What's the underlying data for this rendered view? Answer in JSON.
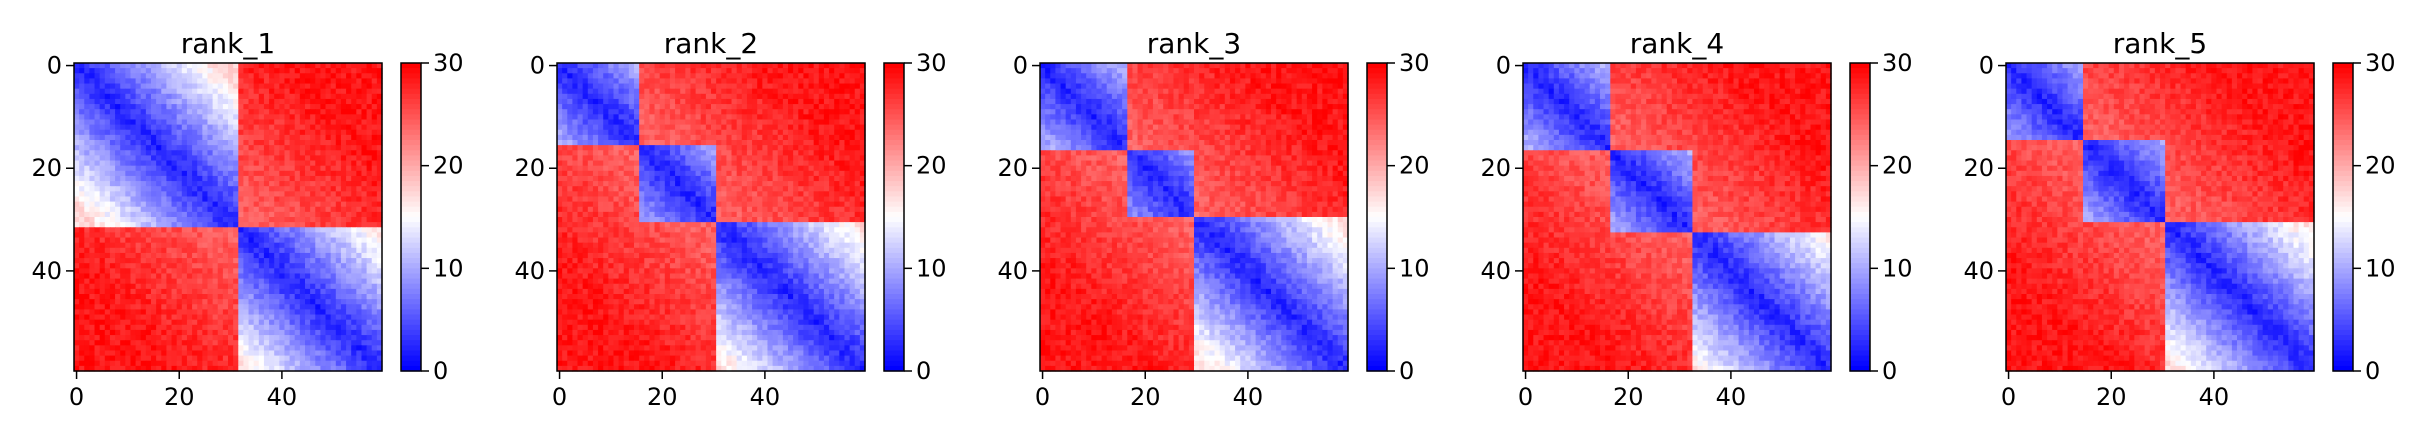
{
  "chart_data": {
    "type": "heatmap",
    "colormap": "bwr",
    "grid": false,
    "panels": [
      {
        "title": "rank_1",
        "x_ticks": [
          "0",
          "20",
          "40"
        ],
        "y_ticks": [
          "0",
          "20",
          "40"
        ],
        "colorbar_ticks": [
          "0",
          "10",
          "20",
          "30"
        ],
        "size": 60,
        "vmin": 0,
        "vmax": 30,
        "domains": [
          [
            0,
            32
          ],
          [
            32,
            60
          ]
        ],
        "sub_domains": [
          [
            16,
            32
          ]
        ]
      },
      {
        "title": "rank_2",
        "x_ticks": [
          "0",
          "20",
          "40"
        ],
        "y_ticks": [
          "0",
          "20",
          "40"
        ],
        "colorbar_ticks": [
          "0",
          "10",
          "20",
          "30"
        ],
        "size": 60,
        "vmin": 0,
        "vmax": 30,
        "domains": [
          [
            0,
            16
          ],
          [
            16,
            31
          ],
          [
            31,
            60
          ]
        ],
        "sub_domains": [
          [
            31,
            45
          ]
        ]
      },
      {
        "title": "rank_3",
        "x_ticks": [
          "0",
          "20",
          "40"
        ],
        "y_ticks": [
          "0",
          "20",
          "40"
        ],
        "colorbar_ticks": [
          "0",
          "10",
          "20",
          "30"
        ],
        "size": 60,
        "vmin": 0,
        "vmax": 30,
        "domains": [
          [
            0,
            17
          ],
          [
            17,
            30
          ],
          [
            30,
            60
          ]
        ],
        "sub_domains": [
          [
            30,
            44
          ]
        ]
      },
      {
        "title": "rank_4",
        "x_ticks": [
          "0",
          "20",
          "40"
        ],
        "y_ticks": [
          "0",
          "20",
          "40"
        ],
        "colorbar_ticks": [
          "0",
          "10",
          "20",
          "30"
        ],
        "size": 60,
        "vmin": 0,
        "vmax": 30,
        "domains": [
          [
            0,
            17
          ],
          [
            17,
            33
          ],
          [
            33,
            60
          ]
        ],
        "sub_domains": []
      },
      {
        "title": "rank_5",
        "x_ticks": [
          "0",
          "20",
          "40"
        ],
        "y_ticks": [
          "0",
          "20",
          "40"
        ],
        "colorbar_ticks": [
          "0",
          "10",
          "20",
          "30"
        ],
        "size": 60,
        "vmin": 0,
        "vmax": 30,
        "domains": [
          [
            0,
            15
          ],
          [
            15,
            31
          ],
          [
            31,
            60
          ]
        ],
        "sub_domains": []
      }
    ]
  }
}
